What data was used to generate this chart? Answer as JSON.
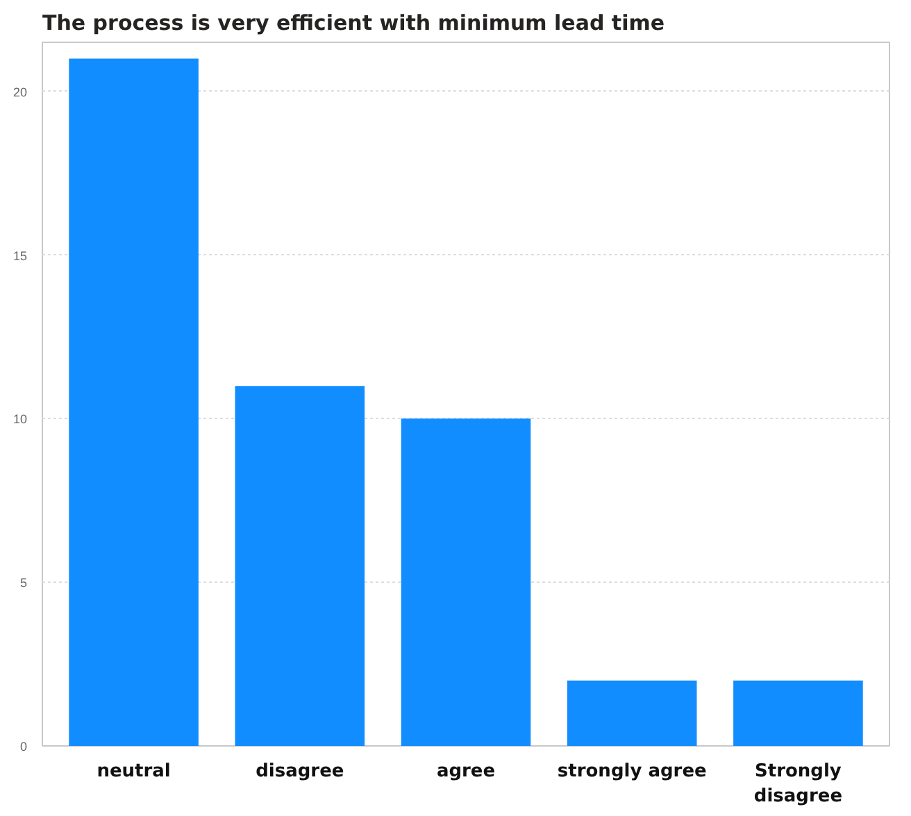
{
  "chart_data": {
    "type": "bar",
    "title": "The process is very efficient with minimum lead time",
    "categories": [
      "neutral",
      "disagree",
      "agree",
      "strongly agree",
      "Strongly disagree"
    ],
    "values": [
      21,
      11,
      10,
      2,
      2
    ],
    "color": "#118dff",
    "ylim": [
      0,
      21.5
    ],
    "yticks": [
      0,
      5,
      10,
      15,
      20
    ],
    "grid": "y"
  }
}
